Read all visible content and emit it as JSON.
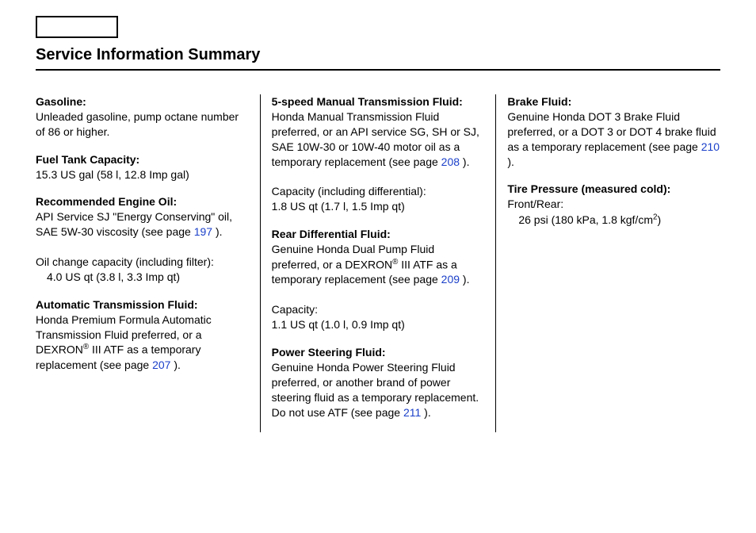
{
  "title": "Service Information Summary",
  "col1": {
    "gasoline": {
      "label": "Gasoline:",
      "text": "Unleaded gasoline, pump octane number of 86 or higher."
    },
    "fuel_tank": {
      "label": "Fuel Tank Capacity:",
      "text": "15.3 US gal (58 l, 12.8 Imp gal)"
    },
    "engine_oil": {
      "label": "Recommended Engine Oil:",
      "text1": "API Service SJ \"Energy Conserving\" oil, SAE 5W-30 viscosity (see page ",
      "link": "197",
      "text2": " ).",
      "change_label": "Oil change capacity (including filter):",
      "change_value": "4.0 US qt (3.8 l, 3.3 Imp qt)"
    },
    "atf": {
      "label": "Automatic Transmission Fluid:",
      "text1": "Honda Premium Formula Automatic Transmission Fluid preferred, or a DEXRON",
      "reg": "®",
      "text2": " III ATF as a temporary replacement (see page ",
      "link": "207",
      "text3": " )."
    }
  },
  "col2": {
    "mtf": {
      "label": "5-speed Manual Transmission Fluid:",
      "text1": "Honda Manual Transmission Fluid preferred, or an API service SG, SH or SJ, SAE 10W-30 or 10W-40 motor oil as a temporary replacement (see page ",
      "link": "208",
      "text2": " ).",
      "cap_label": "Capacity (including differential):",
      "cap_value": "1.8 US qt (1.7 l, 1.5 Imp qt)"
    },
    "rear_diff": {
      "label": "Rear Differential Fluid:",
      "text1": "Genuine Honda Dual Pump Fluid preferred, or a DEXRON",
      "reg": "®",
      "text2": " III ATF as a temporary replacement (see page ",
      "link": "209",
      "text3": " ).",
      "cap_label": "Capacity:",
      "cap_value": "1.1 US qt (1.0 l, 0.9 Imp qt)"
    },
    "power_steering": {
      "label": "Power Steering Fluid:",
      "text1": "Genuine Honda Power Steering Fluid preferred, or another brand of power steering fluid as a temporary replacement. Do not use ATF (see page ",
      "link": "211",
      "text2": " )."
    }
  },
  "col3": {
    "brake": {
      "label": "Brake Fluid:",
      "text1": "Genuine Honda DOT 3 Brake Fluid preferred, or a DOT 3 or DOT 4 brake fluid as a temporary replacement (see page ",
      "link": "210",
      "text2": " )."
    },
    "tire": {
      "label": "Tire Pressure (measured cold):",
      "front_rear": "Front/Rear:",
      "value1": "26 psi (180 kPa, 1.8 kgf/cm",
      "sup": "2",
      "value2": ")"
    }
  }
}
